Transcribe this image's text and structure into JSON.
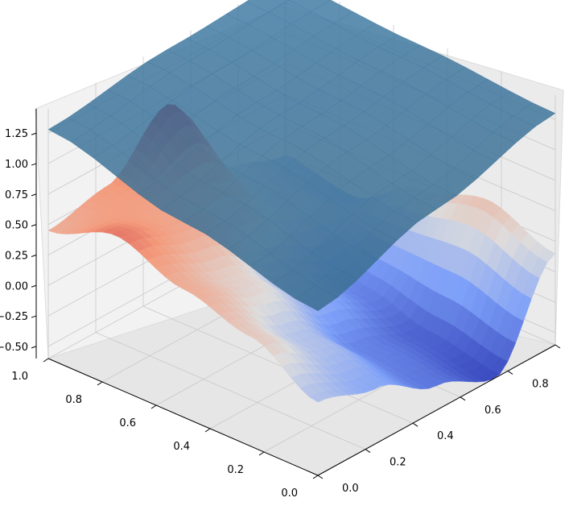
{
  "chart_data": {
    "type": "surface3d",
    "title": "",
    "xlabel": "",
    "ylabel": "",
    "zlabel": "",
    "x_ticks": [
      0.0,
      0.2,
      0.4,
      0.6,
      0.8,
      1.0
    ],
    "x_tick_labels": [
      "0.0",
      "0.2",
      "0.4",
      "0.6",
      "0.8",
      "1.0"
    ],
    "y_ticks": [
      0.0,
      0.2,
      0.4,
      0.6,
      0.8,
      1.0
    ],
    "y_tick_labels": [
      "0.0",
      "0.2",
      "0.4",
      "0.6",
      "0.8",
      "1.0"
    ],
    "z_ticks": [
      -0.5,
      -0.25,
      0.0,
      0.25,
      0.5,
      0.75,
      1.0,
      1.25
    ],
    "z_tick_labels": [
      "−0.50",
      "−0.25",
      "0.00",
      "0.25",
      "0.50",
      "0.75",
      "1.00",
      "1.25"
    ],
    "xlim": [
      0,
      1
    ],
    "ylim": [
      0,
      1
    ],
    "zlim": [
      -0.6,
      1.45
    ],
    "grid": true,
    "view": {
      "elevation_deg": 30,
      "azimuth_deg": -135
    },
    "series": [
      {
        "colormap": "coolwarm",
        "alpha": 1.0,
        "note_values_z_sampled": "z over 5x5 grid, rows y=0..1, cols x=0..1",
        "grid_x": [
          0.0,
          0.25,
          0.5,
          0.75,
          1.0
        ],
        "grid_y": [
          0.0,
          0.25,
          0.5,
          0.75,
          1.0
        ],
        "z": [
          [
            0.0,
            -0.15,
            -0.4,
            -0.6,
            0.15
          ],
          [
            0.3,
            0.0,
            -0.35,
            -0.5,
            0.35
          ],
          [
            0.45,
            0.25,
            -0.1,
            -0.35,
            0.2
          ],
          [
            0.65,
            0.5,
            0.3,
            0.1,
            -0.1
          ],
          [
            0.45,
            0.55,
            0.95,
            0.15,
            0.0
          ]
        ]
      },
      {
        "color": "#3a6f98",
        "alpha": 0.85,
        "grid_x": [
          0.0,
          0.5,
          1.0
        ],
        "grid_y": [
          0.0,
          0.5,
          1.0
        ],
        "z": [
          [
            0.75,
            1.05,
            1.3
          ],
          [
            1.0,
            1.25,
            1.38
          ],
          [
            1.28,
            1.4,
            1.45
          ]
        ]
      }
    ]
  }
}
